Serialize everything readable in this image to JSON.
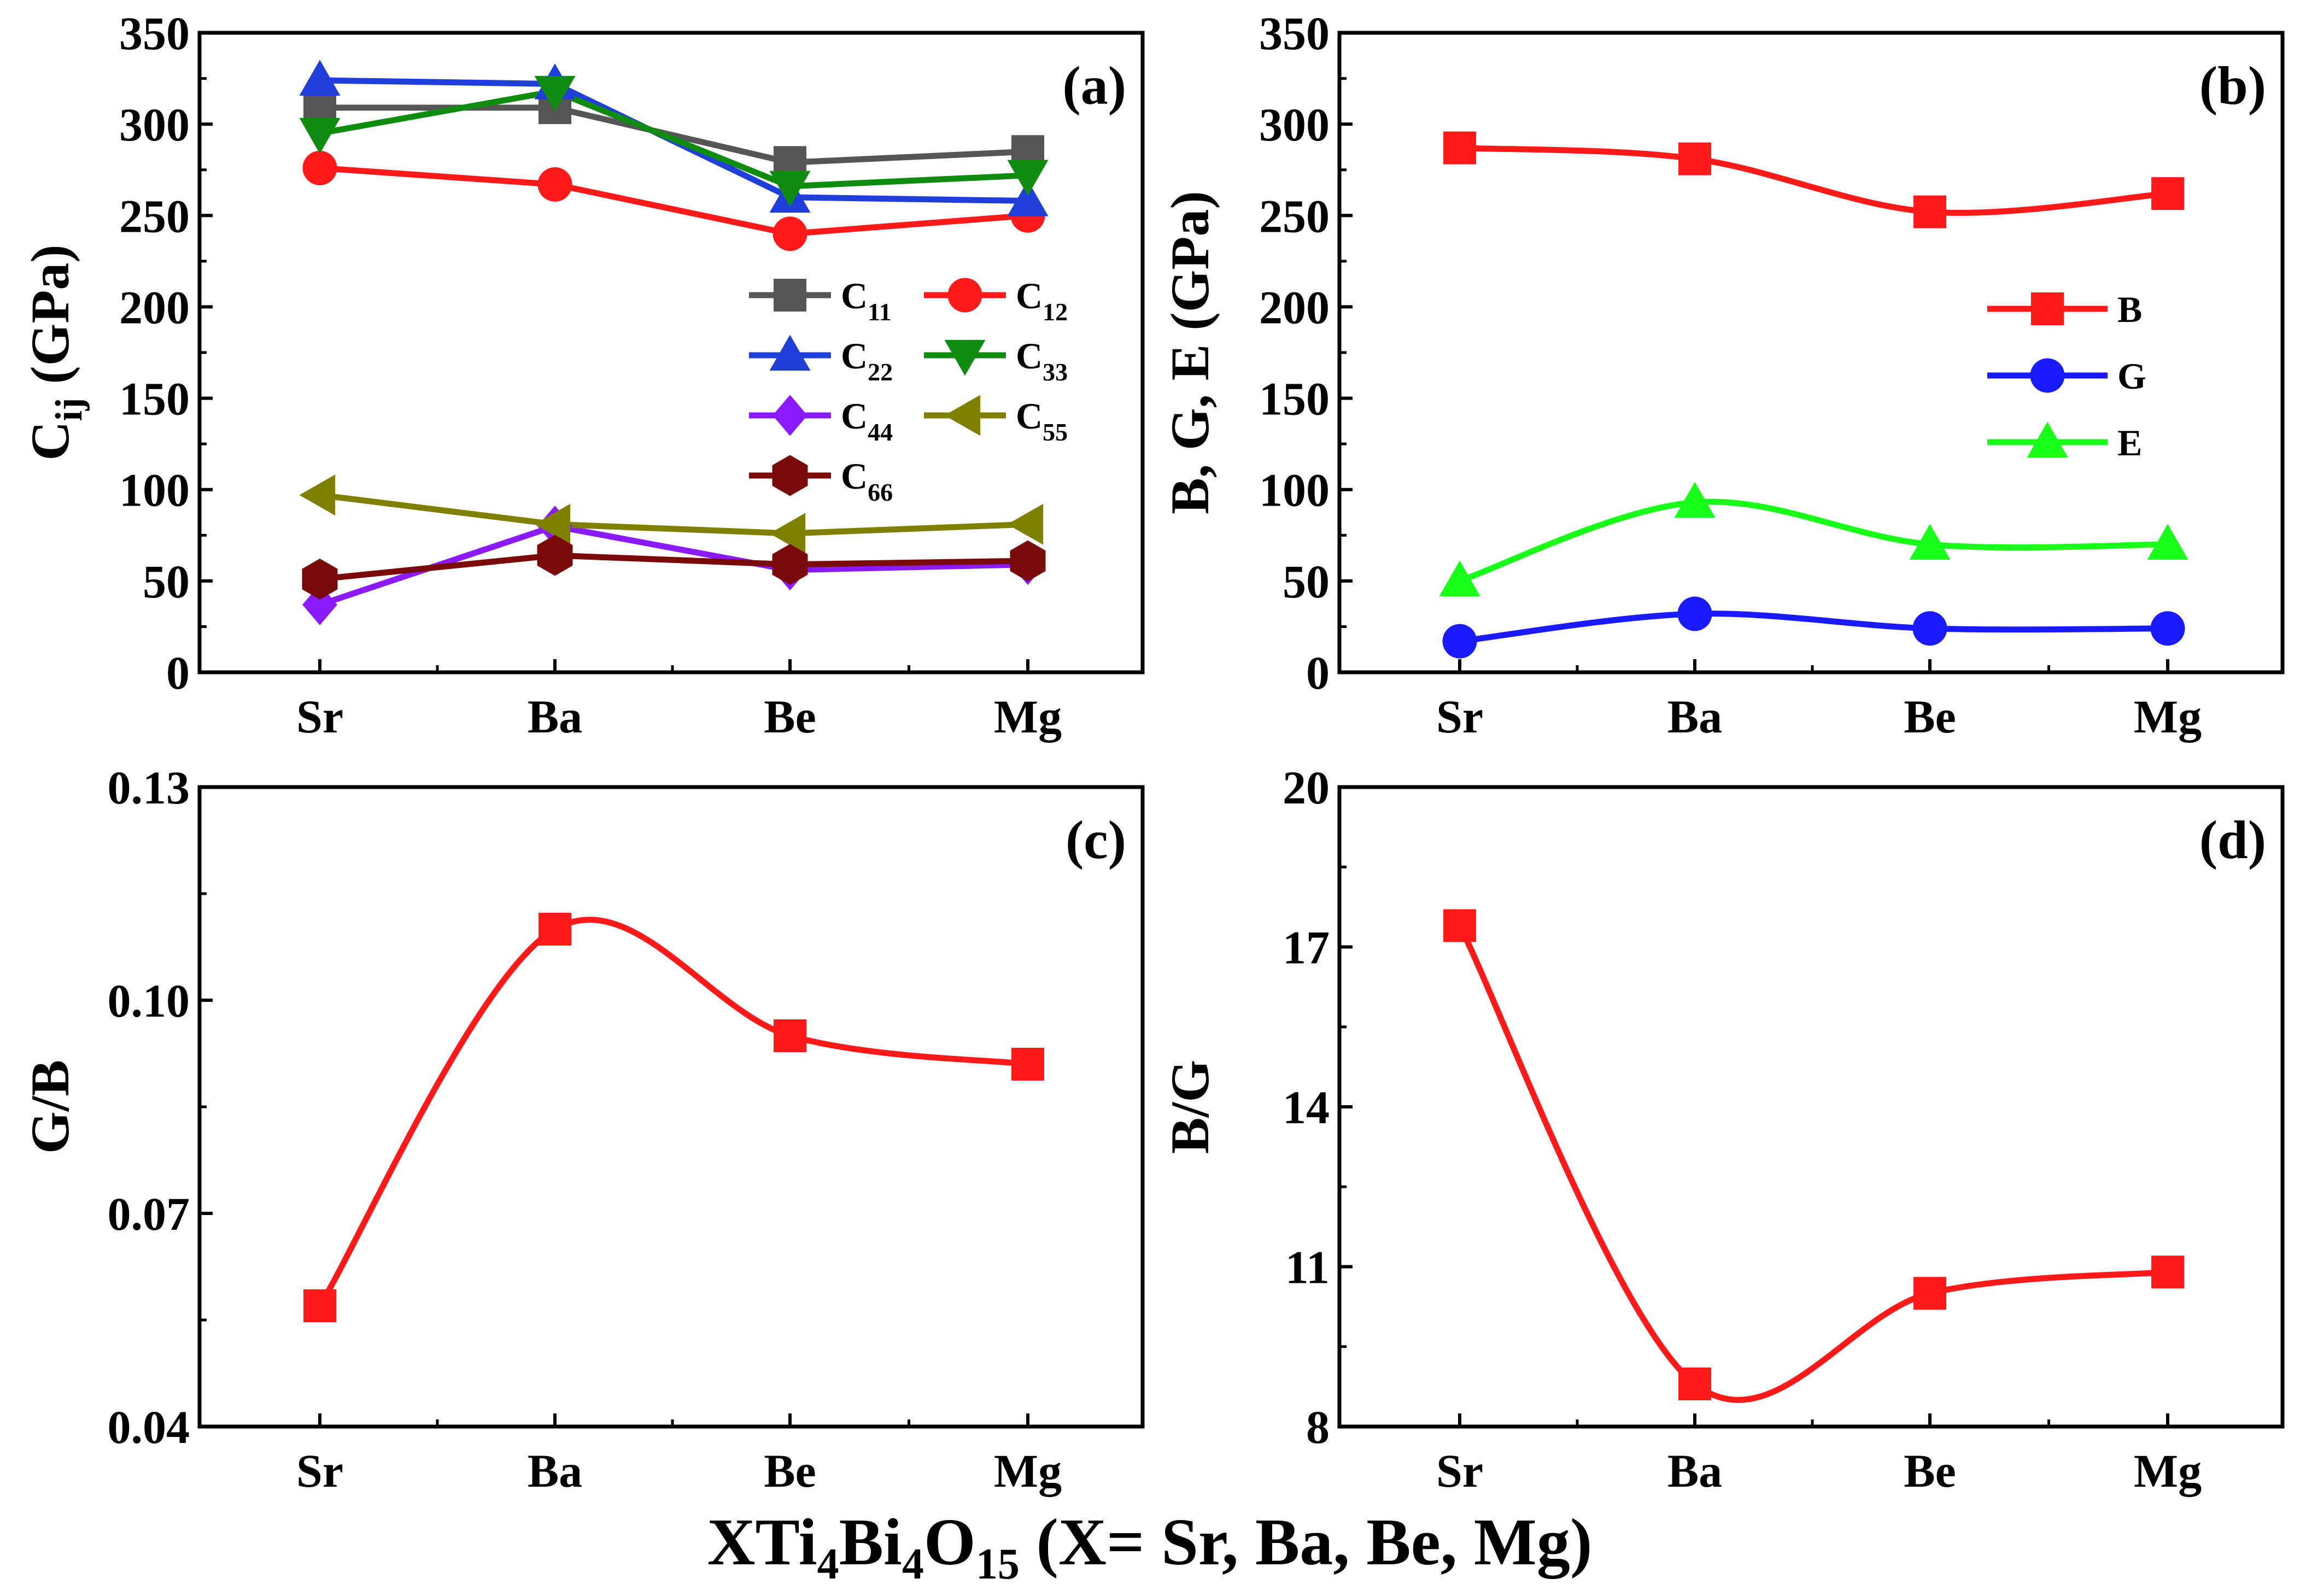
{
  "x_title": {
    "main1": "XTi",
    "sub1": "4",
    "main2": "Bi",
    "sub2": "4",
    "main3": "O",
    "sub3": "15",
    "main4": " (X= Sr, Ba, Be, Mg)"
  },
  "chart_data": [
    {
      "panel": "(a)",
      "type": "line",
      "categories": [
        "Sr",
        "Ba",
        "Be",
        "Mg"
      ],
      "ylabel": {
        "main": "C",
        "sub": "ij",
        "rest": " (GPa)"
      },
      "ylim": [
        0,
        350
      ],
      "yticks": [
        "0",
        "50",
        "100",
        "150",
        "200",
        "250",
        "300",
        "350"
      ],
      "smooth": false,
      "legend_position": "middle-right",
      "series": [
        {
          "name": "C11",
          "label_main": "C",
          "label_sub": "11",
          "color": "#555555",
          "marker": "square",
          "values": [
            309,
            309,
            279,
            285
          ]
        },
        {
          "name": "C12",
          "label_main": "C",
          "label_sub": "12",
          "color": "#ff1a1a",
          "marker": "circle",
          "values": [
            276,
            267,
            240,
            250
          ]
        },
        {
          "name": "C22",
          "label_main": "C",
          "label_sub": "22",
          "color": "#1f3fd8",
          "marker": "triangle-up",
          "values": [
            324,
            322,
            260,
            258
          ]
        },
        {
          "name": "C33",
          "label_main": "C",
          "label_sub": "33",
          "color": "#0f8c0f",
          "marker": "triangle-down",
          "values": [
            295,
            318,
            266,
            272
          ]
        },
        {
          "name": "C44",
          "label_main": "C",
          "label_sub": "44",
          "color": "#8a1aff",
          "marker": "diamond",
          "values": [
            37,
            80,
            56,
            59
          ]
        },
        {
          "name": "C55",
          "label_main": "C",
          "label_sub": "55",
          "color": "#808000",
          "marker": "triangle-left",
          "values": [
            97,
            81,
            76,
            81
          ]
        },
        {
          "name": "C66",
          "label_main": "C",
          "label_sub": "66",
          "color": "#7a0a0a",
          "marker": "hexagon",
          "values": [
            51,
            64,
            59,
            61
          ]
        }
      ]
    },
    {
      "panel": "(b)",
      "type": "line",
      "categories": [
        "Sr",
        "Ba",
        "Be",
        "Mg"
      ],
      "ylabel": {
        "main": "B, G, E (GPa)",
        "sub": "",
        "rest": ""
      },
      "ylim": [
        0,
        350
      ],
      "yticks": [
        "0",
        "50",
        "100",
        "150",
        "200",
        "250",
        "300",
        "350"
      ],
      "smooth": true,
      "legend_position": "middle-right",
      "series": [
        {
          "name": "B",
          "label_main": "B",
          "label_sub": "",
          "color": "#ff1a1a",
          "marker": "square",
          "values": [
            287,
            281,
            252,
            262
          ]
        },
        {
          "name": "G",
          "label_main": "G",
          "label_sub": "",
          "color": "#1a1aff",
          "marker": "circle",
          "values": [
            17,
            32,
            24,
            24
          ]
        },
        {
          "name": "E",
          "label_main": "E",
          "label_sub": "",
          "color": "#1aff1a",
          "marker": "triangle-up",
          "values": [
            50,
            93,
            70,
            70
          ]
        }
      ]
    },
    {
      "panel": "(c)",
      "type": "line",
      "categories": [
        "Sr",
        "Ba",
        "Be",
        "Mg"
      ],
      "ylabel": {
        "main": "G/B",
        "sub": "",
        "rest": ""
      },
      "ylim": [
        0.04,
        0.13
      ],
      "yticks": [
        "0.04",
        "0.07",
        "0.10",
        "0.13"
      ],
      "smooth": true,
      "series": [
        {
          "name": "G/B",
          "label_main": "G/B",
          "label_sub": "",
          "color": "#ff1a1a",
          "marker": "square",
          "values": [
            0.057,
            0.11,
            0.095,
            0.091
          ]
        }
      ]
    },
    {
      "panel": "(d)",
      "type": "line",
      "categories": [
        "Sr",
        "Ba",
        "Be",
        "Mg"
      ],
      "ylabel": {
        "main": "B/G",
        "sub": "",
        "rest": ""
      },
      "ylim": [
        8,
        20
      ],
      "yticks": [
        "8",
        "11",
        "14",
        "17",
        "20"
      ],
      "smooth": true,
      "series": [
        {
          "name": "B/G",
          "label_main": "B/G",
          "label_sub": "",
          "color": "#ff1a1a",
          "marker": "square",
          "values": [
            17.4,
            8.8,
            10.5,
            10.9
          ]
        }
      ]
    }
  ]
}
